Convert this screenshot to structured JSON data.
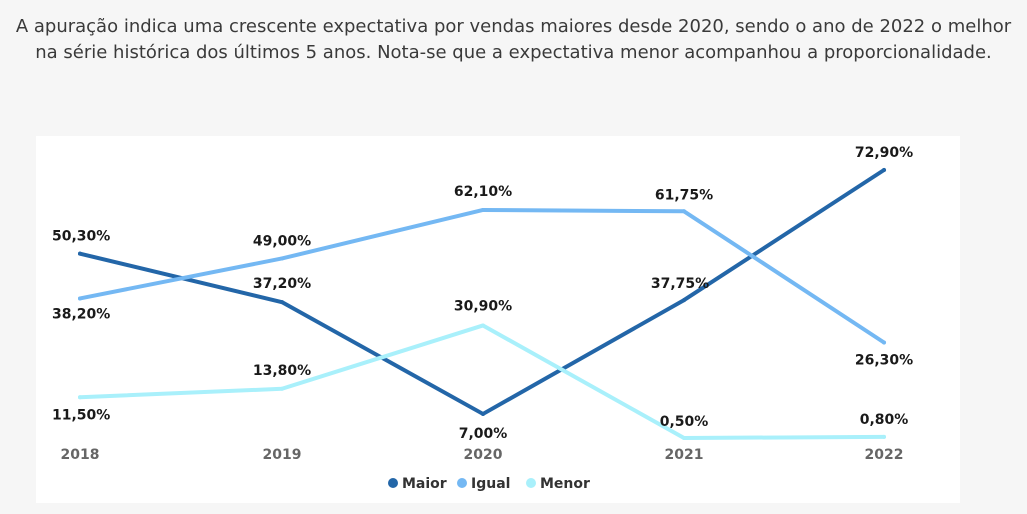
{
  "intro": {
    "line1": "A apuração indica uma crescente expectativa por vendas maiores desde 2020, sendo o ano de 2022 o melhor",
    "line2": "na série histórica dos últimos 5 anos. Nota-se que a expectativa menor acompanhou a proporcionalidade."
  },
  "chart_data": {
    "type": "line",
    "x": [
      "2018",
      "2019",
      "2020",
      "2021",
      "2022"
    ],
    "series": [
      {
        "name": "Maior",
        "color": "#2366a8",
        "values": [
          50.3,
          37.2,
          7.0,
          37.75,
          72.9
        ],
        "labels": [
          "50,30%",
          "37,20%",
          "7,00%",
          "37,75%",
          "72,90%"
        ]
      },
      {
        "name": "Igual",
        "color": "#74b8f3",
        "values": [
          38.2,
          49.0,
          62.1,
          61.75,
          26.3
        ],
        "labels": [
          "38,20%",
          "49,00%",
          "62,10%",
          "61,75%",
          "26,30%"
        ]
      },
      {
        "name": "Menor",
        "color": "#a9f0fb",
        "values": [
          11.5,
          13.8,
          30.9,
          0.5,
          0.8
        ],
        "labels": [
          "11,50%",
          "13,80%",
          "30,90%",
          "0,50%",
          "0,80%"
        ]
      }
    ],
    "ylim": [
      0,
      80
    ],
    "grid": false,
    "legend_position": "bottom-center",
    "xlabel": "",
    "ylabel": ""
  }
}
